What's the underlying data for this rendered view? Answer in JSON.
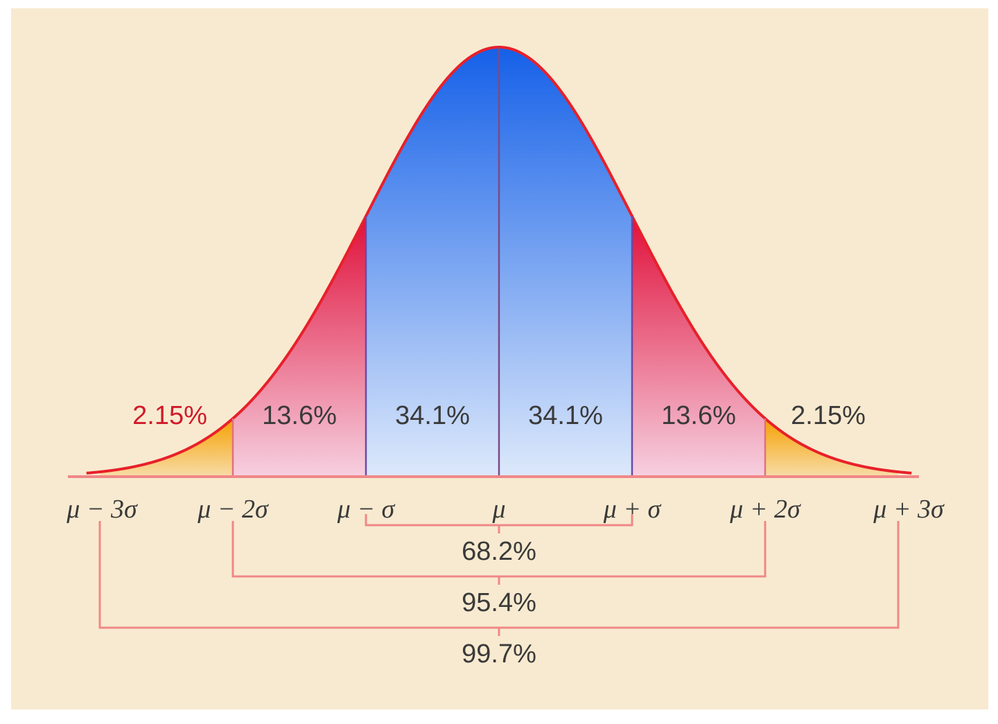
{
  "colors": {
    "background": "#f8ead0",
    "curve": "#e8202a",
    "center_top": "#1560e8",
    "center_bottom": "#dde9fb",
    "mid_top": "#e0103a",
    "mid_bottom": "#f6d0e0",
    "tail_top": "#f6a000",
    "tail_bottom": "#f7dca8",
    "bracket": "#f08888"
  },
  "segments": [
    {
      "label": "2.15%",
      "range": [
        -3,
        -2
      ],
      "tone": "tail",
      "label_color": "#d01a2a"
    },
    {
      "label": "13.6%",
      "range": [
        -2,
        -1
      ],
      "tone": "mid"
    },
    {
      "label": "34.1%",
      "range": [
        -1,
        0
      ],
      "tone": "center"
    },
    {
      "label": "34.1%",
      "range": [
        0,
        1
      ],
      "tone": "center"
    },
    {
      "label": "13.6%",
      "range": [
        1,
        2
      ],
      "tone": "mid"
    },
    {
      "label": "2.15%",
      "range": [
        2,
        3
      ],
      "tone": "tail"
    }
  ],
  "ticks": [
    {
      "sigma": -3,
      "label": "μ − 3σ"
    },
    {
      "sigma": -2,
      "label": "μ − 2σ"
    },
    {
      "sigma": -1,
      "label": "μ − σ"
    },
    {
      "sigma": 0,
      "label": "μ"
    },
    {
      "sigma": 1,
      "label": "μ + σ"
    },
    {
      "sigma": 2,
      "label": "μ + 2σ"
    },
    {
      "sigma": 3,
      "label": "μ + 3σ"
    }
  ],
  "ranges": [
    {
      "label": "68.2%",
      "span": 1
    },
    {
      "label": "95.4%",
      "span": 2
    },
    {
      "label": "99.7%",
      "span": 3
    }
  ]
}
